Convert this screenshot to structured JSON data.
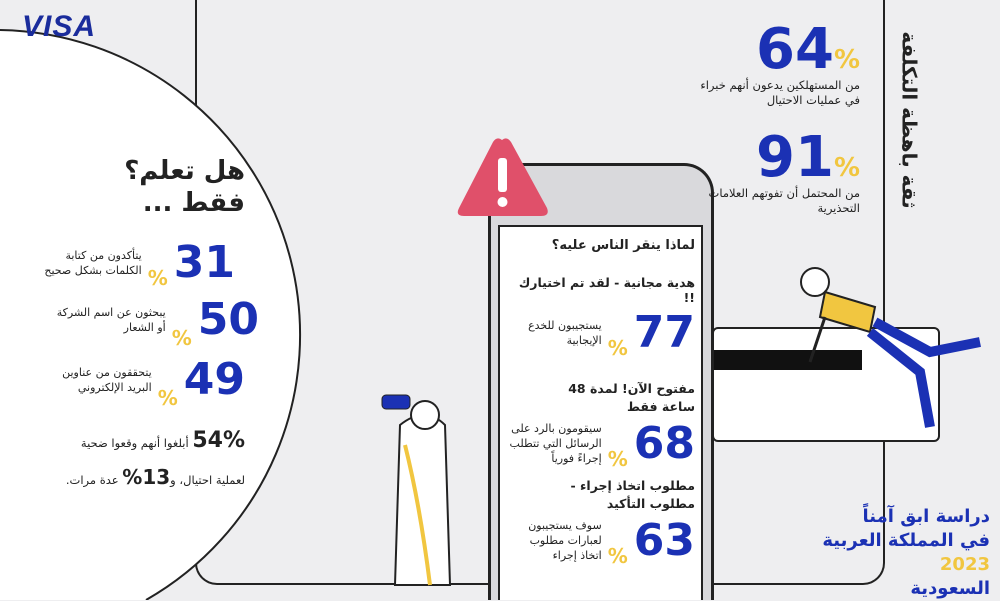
{
  "brand": "VISA",
  "colors": {
    "accent": "#1b31b4",
    "highlight": "#f1c640",
    "warning": "#e0506a"
  },
  "did_you_know": {
    "title_line1": "هل تعلم؟",
    "title_line2": "فقط ...",
    "stats": [
      {
        "value": "31",
        "unit": "%",
        "text": "يتأكدون من كتابة الكلمات بشكل صحيح"
      },
      {
        "value": "50",
        "unit": "%",
        "text": "يبحثون عن اسم الشركة أو الشعار"
      },
      {
        "value": "49",
        "unit": "%",
        "text": "يتحققون من عناوين البريد الإلكتروني"
      }
    ],
    "victims_value": "54%",
    "victims_text": "أبلغوا أنهم وقعوا ضحية",
    "victims_line2_a": "لعملية احتيال، و",
    "victims_repeat": "13%",
    "victims_line2_b": "عدة مرات."
  },
  "phone": {
    "question": "لماذا ينقر الناس عليه؟",
    "items": [
      {
        "heading": "هدية مجانية - لقد تم اختيارك !!",
        "value": "77",
        "unit": "%",
        "text": "يستجيبون للخدع الإيجابية"
      },
      {
        "heading": "مفتوح الآن! لمدة 48 ساعة فقط",
        "value": "68",
        "unit": "%",
        "text": "سيقومون بالرد على الرسائل التي تتطلب إجراءً فورياً"
      },
      {
        "heading": "مطلوب اتخاذ إجراء - مطلوب التأكيد",
        "value": "63",
        "unit": "%",
        "text": "سوف يستجيبون لعبارات مطلوب اتخاذ إجراء"
      }
    ]
  },
  "right": {
    "vertical_title": "ثقة باهظة التكلفة",
    "stats": [
      {
        "value": "64",
        "unit": "%",
        "text": "من المستهلكين يدعون أنهم خبراء في عمليات الاحتيال"
      },
      {
        "value": "91",
        "unit": "%",
        "text": "من المحتمل أن تفوتهم العلامات التحذيرية"
      }
    ]
  },
  "study": {
    "line1": "دراسة ابق آمناً",
    "year": "2023",
    "line2": "في المملكة العربية",
    "line3": "السعودية"
  }
}
